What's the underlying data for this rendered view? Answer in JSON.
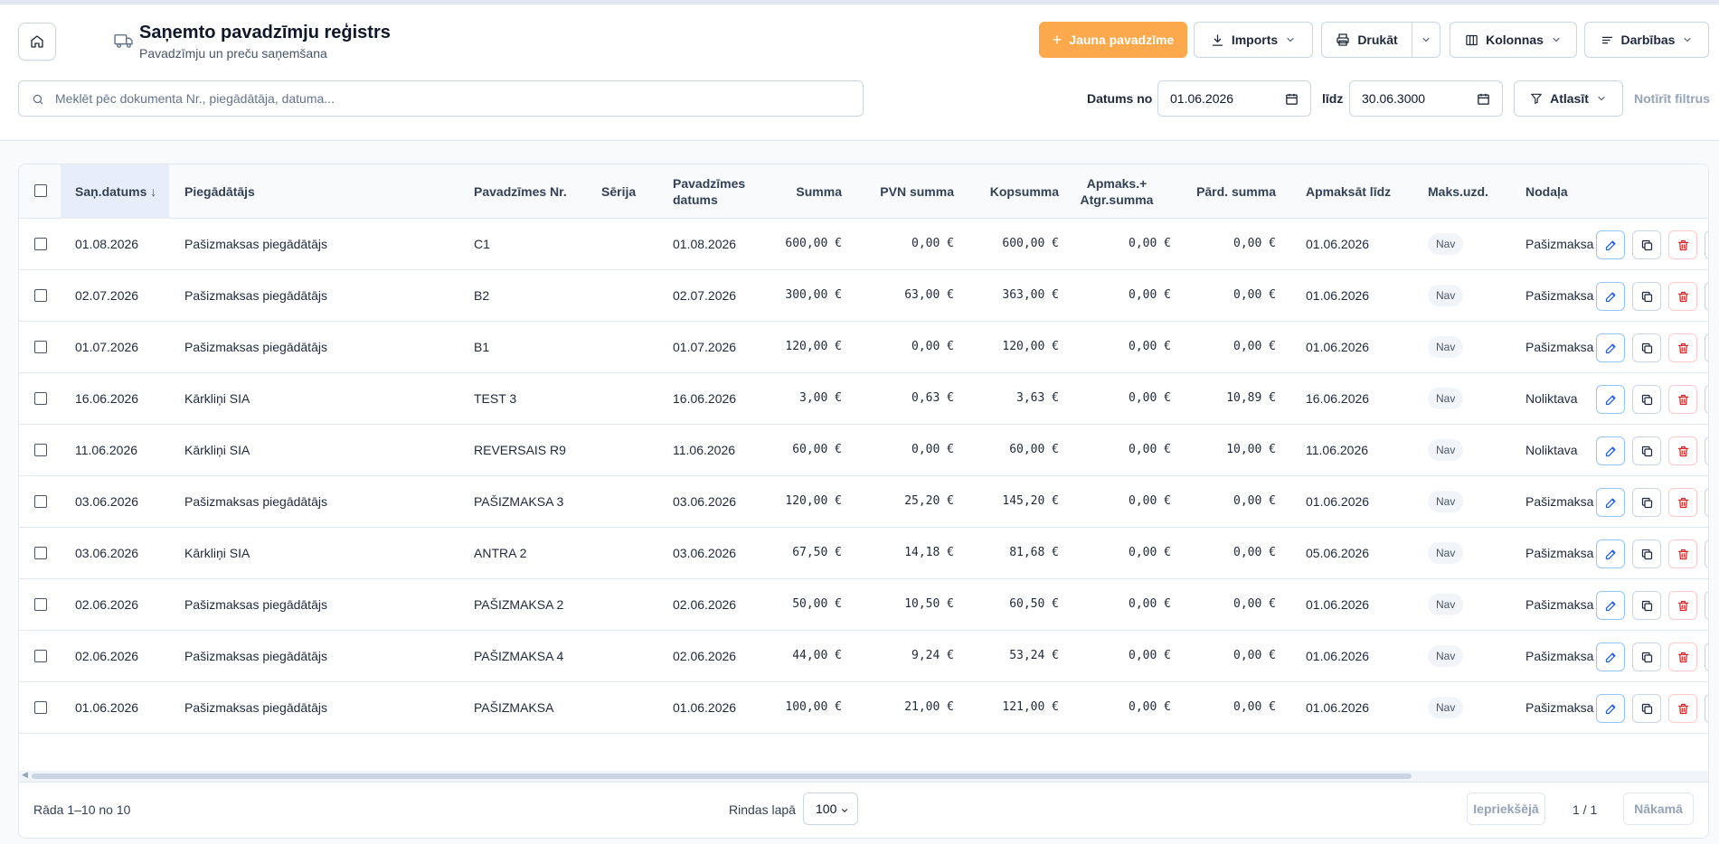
{
  "header": {
    "title": "Saņemto pavadzīmju reģistrs",
    "subtitle": "Pavadzīmju un preču saņemšana",
    "buttons": {
      "new_invoice": "Jauna pavadzīme",
      "import": "Imports",
      "print": "Drukāt",
      "columns": "Kolonnas",
      "actions": "Darbības"
    }
  },
  "filters": {
    "search_placeholder": "Meklēt pēc dokumenta Nr., piegādātāja, datuma...",
    "date_from_label": "Datums no",
    "date_from": "01.06.2026",
    "date_to_label": "līdz",
    "date_to": "30.06.3000",
    "filter_button": "Atlasīt",
    "clear_filters": "Notīrīt filtrus"
  },
  "table": {
    "columns": {
      "received_date": "Saņ.datums",
      "sort_indicator": "↓",
      "supplier": "Piegādātājs",
      "invoice_no": "Pavadzīmes Nr.",
      "series": "Sērija",
      "invoice_date_line1": "Pavadzīmes",
      "invoice_date_line2": "datums",
      "amount": "Summa",
      "vat_amount": "PVN summa",
      "total": "Kopsumma",
      "paid_return_line1": "Apmaks.+",
      "paid_return_line2": "Atgr.summa",
      "sales_amount": "Pārd. summa",
      "pay_until": "Apmaksāt līdz",
      "payment_task": "Maks.uzd.",
      "department": "Nodaļa"
    },
    "rows": [
      {
        "received": "01.08.2026",
        "supplier": "Pašizmaksas piegādātājs",
        "invoice_no": "C1",
        "series": "",
        "invoice_date": "01.08.2026",
        "amount": "600,00 €",
        "vat": "0,00 €",
        "total": "600,00 €",
        "paid": "0,00 €",
        "sales": "0,00 €",
        "pay_until": "01.06.2026",
        "task": "Nav",
        "department": "Pašizmaksa"
      },
      {
        "received": "02.07.2026",
        "supplier": "Pašizmaksas piegādātājs",
        "invoice_no": "B2",
        "series": "",
        "invoice_date": "02.07.2026",
        "amount": "300,00 €",
        "vat": "63,00 €",
        "total": "363,00 €",
        "paid": "0,00 €",
        "sales": "0,00 €",
        "pay_until": "01.06.2026",
        "task": "Nav",
        "department": "Pašizmaksa"
      },
      {
        "received": "01.07.2026",
        "supplier": "Pašizmaksas piegādātājs",
        "invoice_no": "B1",
        "series": "",
        "invoice_date": "01.07.2026",
        "amount": "120,00 €",
        "vat": "0,00 €",
        "total": "120,00 €",
        "paid": "0,00 €",
        "sales": "0,00 €",
        "pay_until": "01.06.2026",
        "task": "Nav",
        "department": "Pašizmaksa"
      },
      {
        "received": "16.06.2026",
        "supplier": "Kārkliņi SIA",
        "invoice_no": "TEST 3",
        "series": "",
        "invoice_date": "16.06.2026",
        "amount": "3,00 €",
        "vat": "0,63 €",
        "total": "3,63 €",
        "paid": "0,00 €",
        "sales": "10,89 €",
        "pay_until": "16.06.2026",
        "task": "Nav",
        "department": "Noliktava"
      },
      {
        "received": "11.06.2026",
        "supplier": "Kārkliņi SIA",
        "invoice_no": "REVERSAIS R9",
        "series": "",
        "invoice_date": "11.06.2026",
        "amount": "60,00 €",
        "vat": "0,00 €",
        "total": "60,00 €",
        "paid": "0,00 €",
        "sales": "10,00 €",
        "pay_until": "11.06.2026",
        "task": "Nav",
        "department": "Noliktava"
      },
      {
        "received": "03.06.2026",
        "supplier": "Pašizmaksas piegādātājs",
        "invoice_no": "PAŠIZMAKSA 3",
        "series": "",
        "invoice_date": "03.06.2026",
        "amount": "120,00 €",
        "vat": "25,20 €",
        "total": "145,20 €",
        "paid": "0,00 €",
        "sales": "0,00 €",
        "pay_until": "01.06.2026",
        "task": "Nav",
        "department": "Pašizmaksa"
      },
      {
        "received": "03.06.2026",
        "supplier": "Kārkliņi SIA",
        "invoice_no": "ANTRA 2",
        "series": "",
        "invoice_date": "03.06.2026",
        "amount": "67,50 €",
        "vat": "14,18 €",
        "total": "81,68 €",
        "paid": "0,00 €",
        "sales": "0,00 €",
        "pay_until": "05.06.2026",
        "task": "Nav",
        "department": "Pašizmaksa"
      },
      {
        "received": "02.06.2026",
        "supplier": "Pašizmaksas piegādātājs",
        "invoice_no": "PAŠIZMAKSA 2",
        "series": "",
        "invoice_date": "02.06.2026",
        "amount": "50,00 €",
        "vat": "10,50 €",
        "total": "60,50 €",
        "paid": "0,00 €",
        "sales": "0,00 €",
        "pay_until": "01.06.2026",
        "task": "Nav",
        "department": "Pašizmaksa"
      },
      {
        "received": "02.06.2026",
        "supplier": "Pašizmaksas piegādātājs",
        "invoice_no": "PAŠIZMAKSA 4",
        "series": "",
        "invoice_date": "02.06.2026",
        "amount": "44,00 €",
        "vat": "9,24 €",
        "total": "53,24 €",
        "paid": "0,00 €",
        "sales": "0,00 €",
        "pay_until": "01.06.2026",
        "task": "Nav",
        "department": "Pašizmaksa"
      },
      {
        "received": "01.06.2026",
        "supplier": "Pašizmaksas piegādātājs",
        "invoice_no": "PAŠIZMAKSA",
        "series": "",
        "invoice_date": "01.06.2026",
        "amount": "100,00 €",
        "vat": "21,00 €",
        "total": "121,00 €",
        "paid": "0,00 €",
        "sales": "0,00 €",
        "pay_until": "01.06.2026",
        "task": "Nav",
        "department": "Pašizmaksa"
      }
    ]
  },
  "footer": {
    "showing": "Rāda 1–10 no 10",
    "rows_per_page_label": "Rindas lapā",
    "rows_per_page": "100",
    "prev": "Iepriekšējā",
    "page": "1 / 1",
    "next": "Nākamā"
  },
  "colors": {
    "accent": "#fba94c",
    "edit": "#2563eb",
    "delete": "#dc2626"
  }
}
